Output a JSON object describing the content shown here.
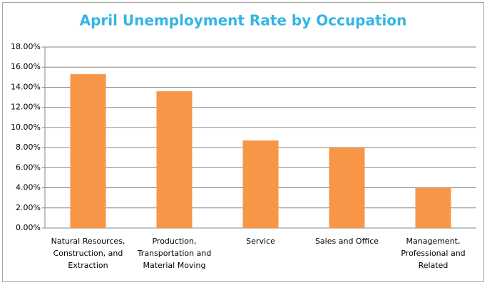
{
  "chart_data": {
    "type": "bar",
    "title": "April Unemployment Rate by Occupation",
    "categories": [
      "Natural Resources, Construction, and Extraction",
      "Production, Transportation and Material Moving",
      "Service",
      "Sales and Office",
      "Management, Professional and Related"
    ],
    "values": [
      15.3,
      13.6,
      8.7,
      8.0,
      4.0
    ],
    "color": "#f79646",
    "ylim": [
      0,
      18
    ],
    "yticks": [
      {
        "value": 0,
        "label": "0.00%"
      },
      {
        "value": 2,
        "label": "2.00%"
      },
      {
        "value": 4,
        "label": "4.00%"
      },
      {
        "value": 6,
        "label": "6.00%"
      },
      {
        "value": 8,
        "label": "8.00%"
      },
      {
        "value": 10,
        "label": "10.00%"
      },
      {
        "value": 12,
        "label": "12.00%"
      },
      {
        "value": 14,
        "label": "14.00%"
      },
      {
        "value": 16,
        "label": "16.00%"
      },
      {
        "value": 18,
        "label": "18.00%"
      }
    ],
    "grid": true
  }
}
